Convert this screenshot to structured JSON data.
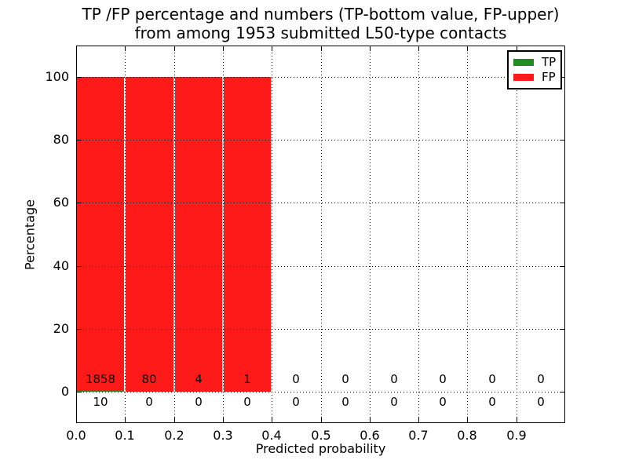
{
  "chart_data": {
    "type": "bar",
    "stacked": true,
    "title_lines": [
      "TP /FP percentage and numbers (TP-bottom value, FP-upper)",
      "from among 1953 submitted L50-type contacts"
    ],
    "total_submitted": 1953,
    "contact_type": "L50-type",
    "xlabel": "Predicted probability",
    "ylabel": "Percentage",
    "xlim": [
      0.0,
      1.0
    ],
    "ylim": [
      -10,
      110
    ],
    "xticks": [
      0.0,
      0.1,
      0.2,
      0.3,
      0.4,
      0.5,
      0.6,
      0.7,
      0.8,
      0.9
    ],
    "xtick_labels": [
      "0.0",
      "0.1",
      "0.2",
      "0.3",
      "0.4",
      "0.5",
      "0.6",
      "0.7",
      "0.8",
      "0.9"
    ],
    "yticks": [
      0,
      20,
      40,
      60,
      80,
      100
    ],
    "ytick_labels": [
      "0",
      "20",
      "40",
      "60",
      "80",
      "100"
    ],
    "grid": true,
    "grid_style": "dotted",
    "bin_width": 0.1,
    "bin_starts": [
      0.0,
      0.1,
      0.2,
      0.3,
      0.4,
      0.5,
      0.6,
      0.7,
      0.8,
      0.9
    ],
    "series": [
      {
        "name": "TP",
        "color": "#228b22",
        "values": [
          10,
          0,
          0,
          0,
          0,
          0,
          0,
          0,
          0,
          0
        ]
      },
      {
        "name": "FP",
        "color": "#ff1a1a",
        "values": [
          1858,
          80,
          4,
          1,
          0,
          0,
          0,
          0,
          0,
          0
        ]
      }
    ],
    "value_labels": {
      "fp_row": [
        "1858",
        "80",
        "4",
        "1",
        "0",
        "0",
        "0",
        "0",
        "0",
        "0"
      ],
      "tp_row": [
        "10",
        "0",
        "0",
        "0",
        "0",
        "0",
        "0",
        "0",
        "0",
        "0"
      ]
    },
    "legend": {
      "position": "upper right",
      "entries": [
        {
          "label": "TP",
          "color": "#228b22"
        },
        {
          "label": "FP",
          "color": "#ff1a1a"
        }
      ]
    }
  }
}
